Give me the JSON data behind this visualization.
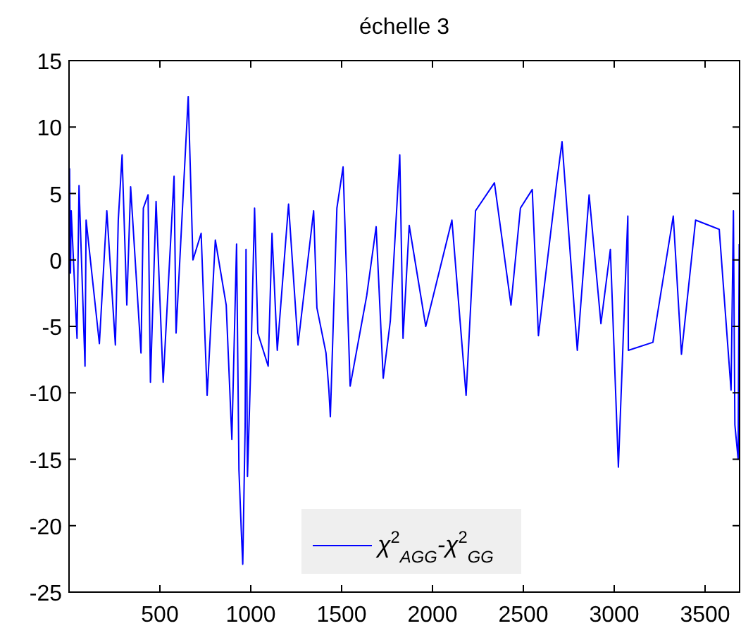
{
  "chart_data": {
    "type": "line",
    "title": "échelle 3",
    "xlim": [
      0,
      3690
    ],
    "ylim": [
      -25,
      15
    ],
    "xticks": [
      500,
      1000,
      1500,
      2000,
      2500,
      3000,
      3500
    ],
    "yticks": [
      -25,
      -20,
      -15,
      -10,
      -5,
      0,
      5,
      10,
      15
    ],
    "grid": false,
    "legend": "bottom",
    "line_style": "solid",
    "series": [
      {
        "name": "χ$^{2}$$_{AGG}$-χ$^{2}$$_{GG}$",
        "color": "#0000ff",
        "x": [
          3,
          8,
          12,
          44,
          55,
          88,
          94,
          167,
          208,
          255,
          271,
          292,
          318,
          339,
          396,
          409,
          435,
          448,
          479,
          518,
          578,
          589,
          656,
          682,
          727,
          760,
          805,
          865,
          896,
          922,
          935,
          948,
          956,
          969,
          974,
          982,
          1000,
          1021,
          1039,
          1096,
          1117,
          1146,
          1208,
          1260,
          1346,
          1364,
          1414,
          1430,
          1438,
          1474,
          1508,
          1547,
          1638,
          1690,
          1729,
          1768,
          1820,
          1838,
          1872,
          1963,
          2107,
          2185,
          2237,
          2341,
          2432,
          2484,
          2549,
          2583,
          2685,
          2713,
          2797,
          2862,
          2927,
          2979,
          3023,
          3075,
          3078,
          3213,
          3325,
          3370,
          3448,
          3578,
          3643,
          3656,
          3664,
          3682,
          3688
        ],
        "values": [
          6.9,
          -1,
          3.7,
          -5.9,
          5.6,
          -8,
          3,
          -6.3,
          3.7,
          -6.4,
          3,
          7.9,
          -3.4,
          5.5,
          -7,
          3.9,
          4.9,
          -9.2,
          4.4,
          -9.2,
          6.3,
          -5.5,
          12.3,
          0,
          2,
          -10.2,
          1.5,
          -3.4,
          -13.5,
          1.2,
          -15.8,
          -20.4,
          -22.9,
          -12.6,
          0.8,
          -16.3,
          -8,
          3.9,
          -5.5,
          -8,
          2,
          -6.8,
          4.2,
          -6.4,
          3.7,
          -3.6,
          -7,
          -9.8,
          -11.8,
          3.9,
          7,
          -9.5,
          -2.7,
          2.5,
          -8.9,
          -4.6,
          7.9,
          -5.9,
          2.6,
          -5,
          3,
          -10.2,
          3.7,
          5.8,
          -3.4,
          3.9,
          5.3,
          -5.7,
          6,
          8.9,
          -6.8,
          4.9,
          -4.8,
          0.8,
          -15.6,
          3.3,
          -6.8,
          -6.2,
          3.3,
          -7.1,
          3,
          2.3,
          -9.8,
          3.7,
          -12.4,
          -15,
          1.2
        ]
      }
    ]
  }
}
